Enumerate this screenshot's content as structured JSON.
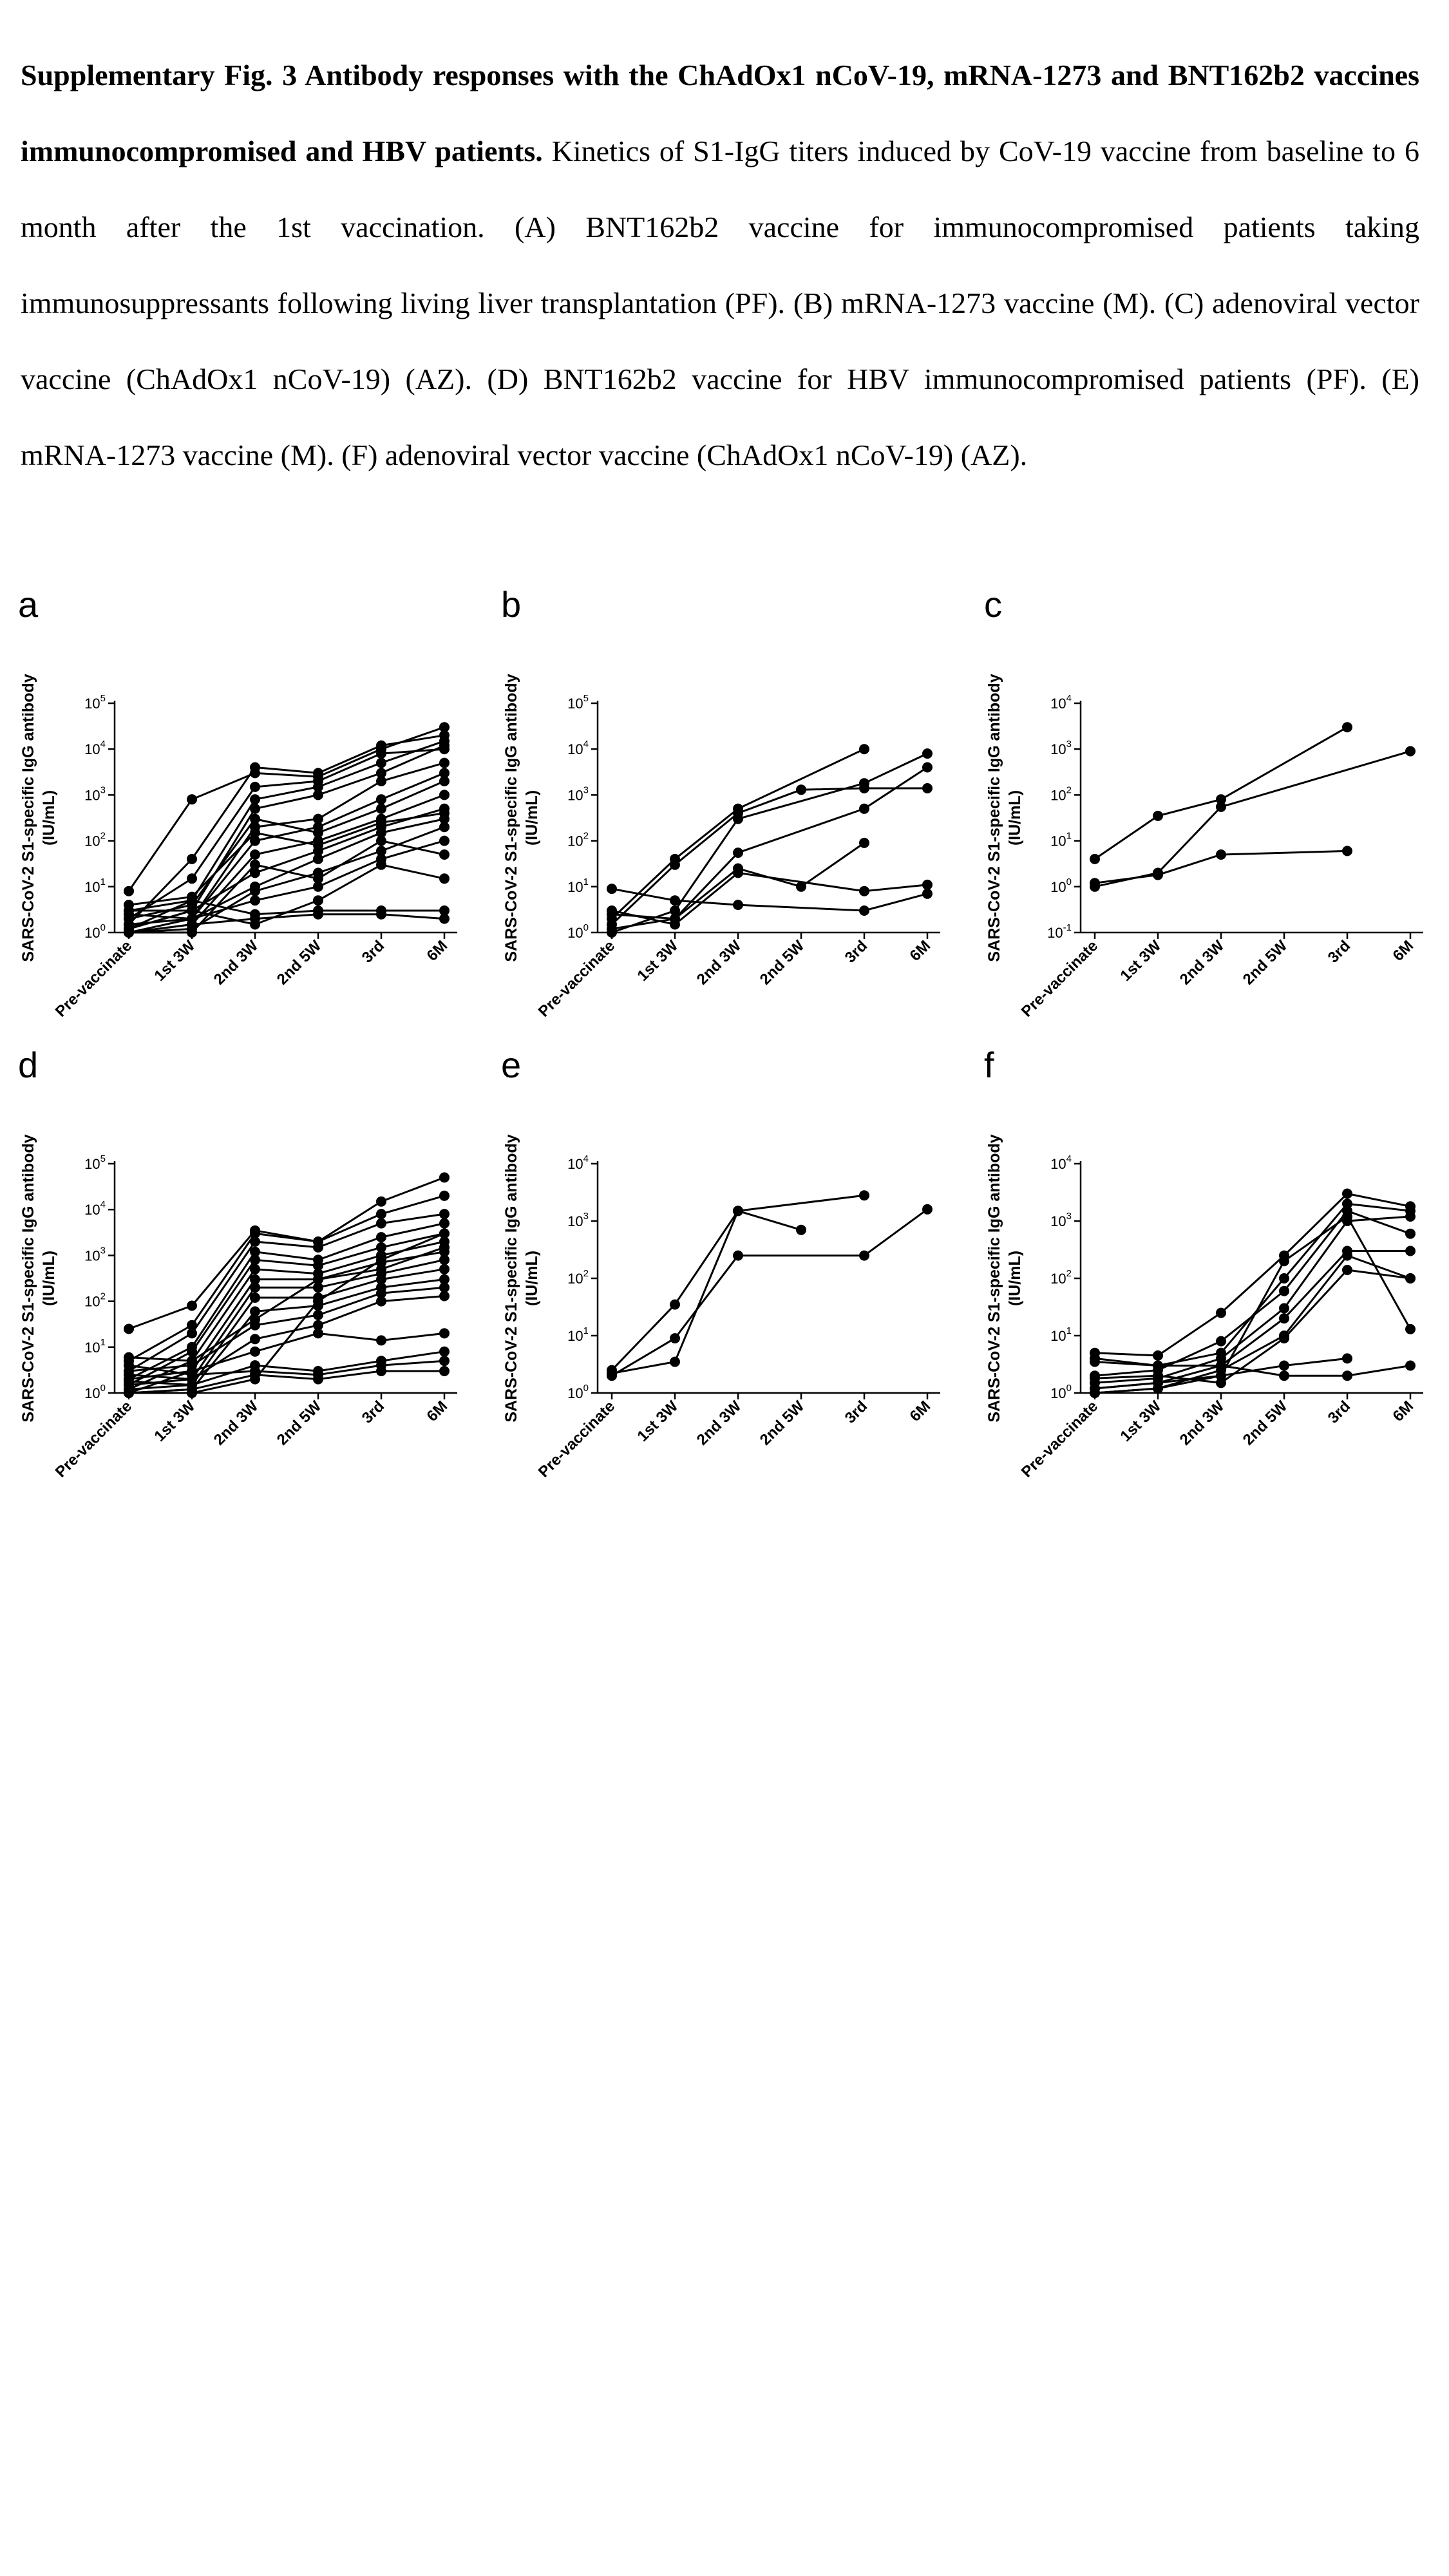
{
  "caption": {
    "bold": "Supplementary Fig. 3 Antibody responses with the ChAdOx1 nCoV-19, mRNA-1273 and BNT162b2 vaccines immunocompromised and HBV patients.",
    "body": " Kinetics of S1-IgG titers induced by CoV-19 vaccine from baseline to 6 month after the 1st  vaccination. (A) BNT162b2 vaccine for immunocompromised patients taking immunosuppressants following living liver transplantation (PF). (B) mRNA-1273 vaccine (M). (C) adenoviral vector vaccine (ChAdOx1 nCoV-19) (AZ). (D) BNT162b2 vaccine for HBV immunocompromised patients (PF). (E) mRNA-1273 vaccine (M). (F) adenoviral vector vaccine (ChAdOx1 nCoV-19) (AZ)."
  },
  "colors": {
    "line": "#000000",
    "marker": "#000000"
  },
  "chart_data": [
    {
      "panel": "a",
      "type": "line",
      "yscale": "log",
      "ylabel_line1": "SARS-CoV-2 S1-specific IgG antibody",
      "ylabel_line2": "(IU/mL)",
      "categories": [
        "Pre-vaccinate",
        "1st 3W",
        "2nd 3W",
        "2nd 5W",
        "3rd",
        "6M"
      ],
      "ylim": [
        1,
        100000
      ],
      "yticks": [
        {
          "base": "10",
          "exp": "0"
        },
        {
          "base": "10",
          "exp": "1"
        },
        {
          "base": "10",
          "exp": "2"
        },
        {
          "base": "10",
          "exp": "3"
        },
        {
          "base": "10",
          "exp": "4"
        },
        {
          "base": "10",
          "exp": "5"
        }
      ],
      "series": [
        {
          "values": [
            8,
            800,
            3000,
            2500,
            10000,
            30000
          ]
        },
        {
          "values": [
            1.5,
            40,
            4000,
            3000,
            12000,
            20000
          ]
        },
        {
          "values": [
            2,
            15,
            1500,
            2000,
            8000,
            10000
          ]
        },
        {
          "values": [
            1.2,
            5,
            800,
            1500,
            5000,
            15000
          ]
        },
        {
          "values": [
            3,
            3,
            500,
            1000,
            3000,
            12000
          ]
        },
        {
          "values": [
            1,
            2,
            200,
            300,
            2000,
            5000
          ]
        },
        {
          "values": [
            1.5,
            2,
            100,
            200,
            800,
            3000
          ]
        },
        {
          "values": [
            2,
            4,
            300,
            150,
            500,
            2000
          ]
        },
        {
          "values": [
            1,
            1.5,
            50,
            100,
            300,
            1000
          ]
        },
        {
          "values": [
            1.2,
            3,
            20,
            60,
            200,
            500
          ]
        },
        {
          "values": [
            2.5,
            2,
            10,
            40,
            150,
            300
          ]
        },
        {
          "values": [
            1,
            1.2,
            8,
            20,
            60,
            200
          ]
        },
        {
          "values": [
            1.5,
            2,
            5,
            10,
            40,
            100
          ]
        },
        {
          "values": [
            3,
            5,
            2.5,
            3,
            3,
            3
          ]
        },
        {
          "values": [
            1,
            1.5,
            2,
            2.5,
            2.5,
            2
          ]
        },
        {
          "values": [
            1.2,
            3,
            1.5,
            5,
            30,
            15
          ]
        },
        {
          "values": [
            4,
            6,
            150,
            80,
            250,
            400
          ]
        },
        {
          "values": [
            1,
            1,
            30,
            15,
            100,
            50
          ]
        }
      ]
    },
    {
      "panel": "b",
      "type": "line",
      "yscale": "log",
      "ylabel_line1": "SARS-CoV-2 S1-specific IgG antibody",
      "ylabel_line2": "(IU/mL)",
      "categories": [
        "Pre-vaccinate",
        "1st 3W",
        "2nd 3W",
        "2nd 5W",
        "3rd",
        "6M"
      ],
      "ylim": [
        1,
        100000
      ],
      "yticks": [
        {
          "base": "10",
          "exp": "0"
        },
        {
          "base": "10",
          "exp": "1"
        },
        {
          "base": "10",
          "exp": "2"
        },
        {
          "base": "10",
          "exp": "3"
        },
        {
          "base": "10",
          "exp": "4"
        },
        {
          "base": "10",
          "exp": "5"
        }
      ],
      "series": [
        {
          "values": [
            2,
            40,
            500,
            null,
            10000,
            null
          ]
        },
        {
          "values": [
            1.5,
            30,
            400,
            1300,
            1400,
            1400
          ]
        },
        {
          "values": [
            1,
            3,
            300,
            null,
            1800,
            8000
          ]
        },
        {
          "values": [
            2.5,
            2,
            55,
            null,
            500,
            4000
          ]
        },
        {
          "values": [
            9,
            5,
            4,
            null,
            3,
            7
          ]
        },
        {
          "values": [
            1.2,
            2,
            25,
            10,
            90,
            null
          ]
        },
        {
          "values": [
            3,
            1.5,
            20,
            null,
            8,
            11
          ]
        }
      ]
    },
    {
      "panel": "c",
      "type": "line",
      "yscale": "log",
      "ylabel_line1": "SARS-CoV-2 S1-specific IgG antibody",
      "ylabel_line2": "(IU/mL)",
      "categories": [
        "Pre-vaccinate",
        "1st 3W",
        "2nd 3W",
        "2nd 5W",
        "3rd",
        "6M"
      ],
      "ylim": [
        0.1,
        10000
      ],
      "yticks": [
        {
          "base": "10",
          "exp": "-1"
        },
        {
          "base": "10",
          "exp": "0"
        },
        {
          "base": "10",
          "exp": "1"
        },
        {
          "base": "10",
          "exp": "2"
        },
        {
          "base": "10",
          "exp": "3"
        },
        {
          "base": "10",
          "exp": "4"
        }
      ],
      "series": [
        {
          "values": [
            4,
            35,
            80,
            null,
            3000,
            null
          ]
        },
        {
          "values": [
            1,
            2,
            55,
            null,
            null,
            900
          ]
        },
        {
          "values": [
            1.2,
            1.8,
            5,
            null,
            6,
            null
          ]
        }
      ]
    },
    {
      "panel": "d",
      "type": "line",
      "yscale": "log",
      "ylabel_line1": "SARS-CoV-2 S1-specific IgG antibody",
      "ylabel_line2": "(IU/mL)",
      "categories": [
        "Pre-vaccinate",
        "1st 3W",
        "2nd 3W",
        "2nd 5W",
        "3rd",
        "6M"
      ],
      "ylim": [
        1,
        100000
      ],
      "yticks": [
        {
          "base": "10",
          "exp": "0"
        },
        {
          "base": "10",
          "exp": "1"
        },
        {
          "base": "10",
          "exp": "2"
        },
        {
          "base": "10",
          "exp": "3"
        },
        {
          "base": "10",
          "exp": "4"
        },
        {
          "base": "10",
          "exp": "5"
        }
      ],
      "series": [
        {
          "values": [
            25,
            80,
            3500,
            2000,
            15000,
            50000
          ]
        },
        {
          "values": [
            5,
            30,
            3000,
            2000,
            8000,
            20000
          ]
        },
        {
          "values": [
            3,
            20,
            2000,
            1500,
            5000,
            8000
          ]
        },
        {
          "values": [
            2,
            10,
            1200,
            800,
            2500,
            5000
          ]
        },
        {
          "values": [
            1.5,
            8,
            800,
            600,
            1500,
            3000
          ]
        },
        {
          "values": [
            1.2,
            5,
            500,
            400,
            1000,
            2000
          ]
        },
        {
          "values": [
            1,
            3,
            300,
            300,
            700,
            1200
          ]
        },
        {
          "values": [
            2.5,
            2,
            200,
            200,
            400,
            800
          ]
        },
        {
          "values": [
            1.8,
            1.5,
            120,
            120,
            300,
            500
          ]
        },
        {
          "values": [
            1,
            1.2,
            60,
            80,
            200,
            300
          ]
        },
        {
          "values": [
            3,
            4,
            30,
            50,
            150,
            200
          ]
        },
        {
          "values": [
            1.5,
            2,
            15,
            30,
            100,
            130
          ]
        },
        {
          "values": [
            2,
            3,
            8,
            20,
            14,
            20
          ]
        },
        {
          "values": [
            1.2,
            1.5,
            4,
            3,
            5,
            8
          ]
        },
        {
          "values": [
            1,
            1.2,
            2.5,
            2,
            3,
            3
          ]
        },
        {
          "values": [
            4,
            2.5,
            3,
            2.5,
            4,
            5
          ]
        },
        {
          "values": [
            6,
            5,
            40,
            300,
            500,
            1500
          ]
        },
        {
          "values": [
            1,
            1,
            2,
            100,
            800,
            3000
          ]
        }
      ]
    },
    {
      "panel": "e",
      "type": "line",
      "yscale": "log",
      "ylabel_line1": "SARS-CoV-2 S1-specific IgG antibody",
      "ylabel_line2": "(IU/mL)",
      "categories": [
        "Pre-vaccinate",
        "1st 3W",
        "2nd 3W",
        "2nd 5W",
        "3rd",
        "6M"
      ],
      "ylim": [
        1,
        10000
      ],
      "yticks": [
        {
          "base": "10",
          "exp": "0"
        },
        {
          "base": "10",
          "exp": "1"
        },
        {
          "base": "10",
          "exp": "2"
        },
        {
          "base": "10",
          "exp": "3"
        },
        {
          "base": "10",
          "exp": "4"
        }
      ],
      "series": [
        {
          "values": [
            2.5,
            35,
            1500,
            700,
            null,
            null
          ]
        },
        {
          "values": [
            2.2,
            3.5,
            1500,
            null,
            2800,
            null
          ]
        },
        {
          "values": [
            2,
            9,
            250,
            null,
            250,
            1600
          ]
        }
      ]
    },
    {
      "panel": "f",
      "type": "line",
      "yscale": "log",
      "ylabel_line1": "SARS-CoV-2 S1-specific IgG antibody",
      "ylabel_line2": "(IU/mL)",
      "categories": [
        "Pre-vaccinate",
        "1st 3W",
        "2nd 3W",
        "2nd 5W",
        "3rd",
        "6M"
      ],
      "ylim": [
        1,
        10000
      ],
      "yticks": [
        {
          "base": "10",
          "exp": "0"
        },
        {
          "base": "10",
          "exp": "1"
        },
        {
          "base": "10",
          "exp": "2"
        },
        {
          "base": "10",
          "exp": "3"
        },
        {
          "base": "10",
          "exp": "4"
        }
      ],
      "series": [
        {
          "values": [
            5,
            4.5,
            25,
            250,
            3000,
            1800
          ]
        },
        {
          "values": [
            4,
            3,
            5,
            100,
            2000,
            1500
          ]
        },
        {
          "values": [
            2,
            2.5,
            8,
            60,
            1500,
            600
          ]
        },
        {
          "values": [
            1.5,
            1.8,
            4,
            30,
            1000,
            1200
          ]
        },
        {
          "values": [
            1.2,
            1.5,
            3,
            20,
            300,
            300
          ]
        },
        {
          "values": [
            1,
            1.2,
            2.5,
            10,
            250,
            100
          ]
        },
        {
          "values": [
            3.5,
            3,
            3,
            2,
            2,
            3
          ]
        },
        {
          "values": [
            1.2,
            1.5,
            2,
            3,
            4,
            null
          ]
        },
        {
          "values": [
            1.8,
            2,
            1.5,
            9,
            140,
            100
          ]
        },
        {
          "values": [
            1,
            1.2,
            2,
            200,
            1200,
            13
          ]
        }
      ]
    }
  ]
}
